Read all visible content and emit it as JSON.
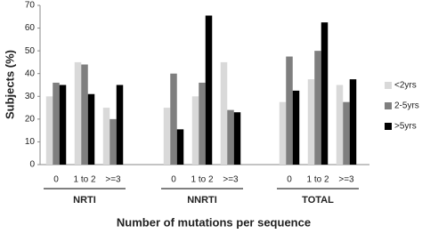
{
  "chart_data": {
    "type": "bar",
    "y_label": "Subjects (%)",
    "x_label": "Number of mutations per sequence",
    "categories": [
      "0",
      "1 to 2",
      ">=3",
      "0",
      "1 to 2",
      ">=3",
      "0",
      "1 to 2",
      ">=3"
    ],
    "groups": [
      "NRTI",
      "NNRTI",
      "TOTAL"
    ],
    "series": [
      {
        "name": "<2yrs",
        "color": "#d9d9d9",
        "values": [
          30,
          45,
          25,
          25,
          30,
          45,
          27.5,
          37.5,
          35
        ]
      },
      {
        "name": "2-5yrs",
        "color": "#7f7f7f",
        "values": [
          36,
          44,
          20,
          40,
          36,
          24,
          47.5,
          50,
          27.5
        ]
      },
      {
        "name": ">5yrs",
        "color": "#000000",
        "values": [
          35,
          31,
          35,
          15.5,
          65.5,
          23,
          32.5,
          62.5,
          37.5
        ]
      }
    ],
    "ylim": [
      0,
      70
    ],
    "yticks": [
      0,
      10,
      20,
      30,
      40,
      50,
      60,
      70
    ],
    "grid": false,
    "legend": "right"
  }
}
